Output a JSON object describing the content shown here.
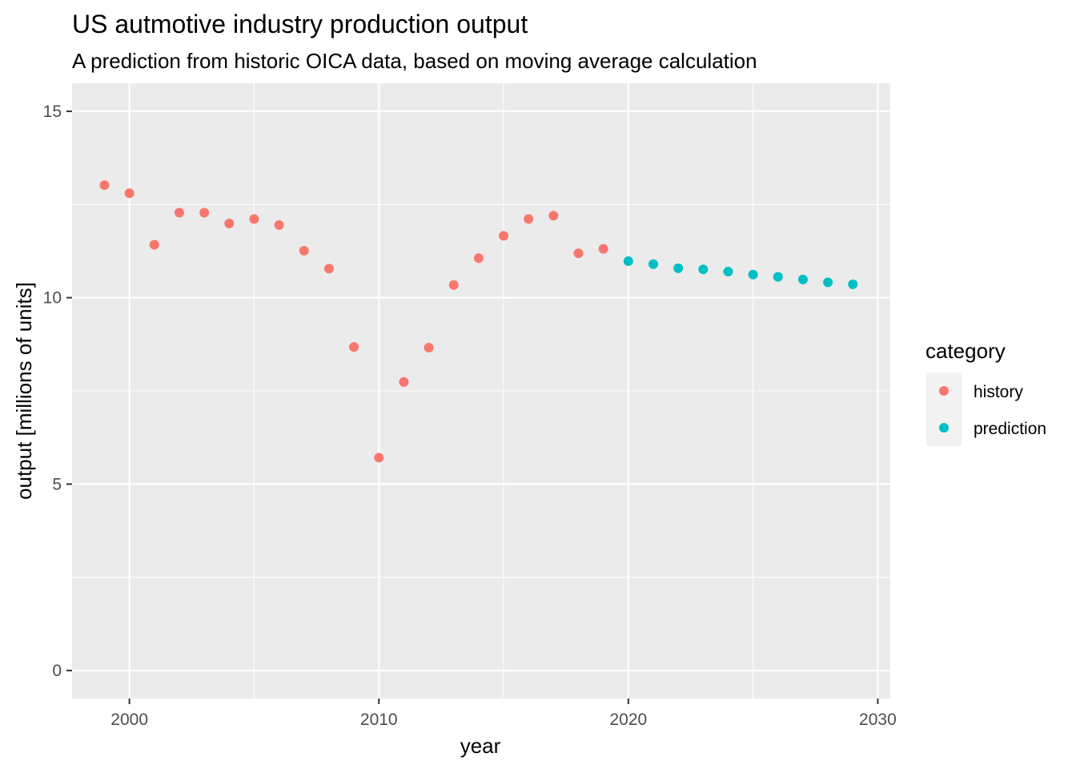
{
  "chart_data": {
    "type": "scatter",
    "title": "US autmotive industry production output",
    "subtitle": "A prediction from historic OICA data, based on moving average calculation",
    "xlabel": "year",
    "ylabel": "output [millions of units]",
    "xlim": [
      1997.7,
      2030.5
    ],
    "ylim": [
      -0.75,
      15.75
    ],
    "x_ticks": [
      2000,
      2010,
      2020,
      2030
    ],
    "y_ticks": [
      0,
      5,
      10,
      15
    ],
    "x_minor_ticks": [
      2005,
      2015,
      2025
    ],
    "y_minor_ticks": [
      2.5,
      7.5,
      12.5
    ],
    "grid": true,
    "panel_background": "#ebebeb",
    "gridline_color": "#ffffff",
    "legend": {
      "title": "category",
      "position": "right",
      "entries": [
        "history",
        "prediction"
      ]
    },
    "series": [
      {
        "name": "history",
        "color": "#f8766d",
        "x": [
          1999,
          2000,
          2001,
          2002,
          2003,
          2004,
          2005,
          2006,
          2007,
          2008,
          2009,
          2010,
          2011,
          2012,
          2013,
          2014,
          2015,
          2016,
          2017,
          2018,
          2019
        ],
        "y": [
          13.02,
          12.8,
          11.42,
          12.28,
          12.28,
          11.99,
          12.11,
          11.95,
          11.26,
          10.78,
          8.68,
          5.71,
          7.74,
          8.66,
          10.34,
          11.06,
          11.66,
          12.11,
          12.2,
          11.19,
          11.31
        ]
      },
      {
        "name": "prediction",
        "color": "#00bfc4",
        "x": [
          2020,
          2021,
          2022,
          2023,
          2024,
          2025,
          2026,
          2027,
          2028,
          2029
        ],
        "y": [
          10.98,
          10.9,
          10.79,
          10.76,
          10.7,
          10.62,
          10.56,
          10.49,
          10.41,
          10.36
        ]
      }
    ]
  }
}
